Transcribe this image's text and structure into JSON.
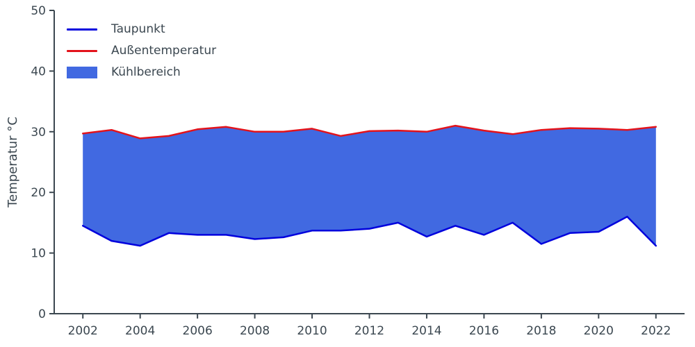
{
  "chart_data": {
    "type": "area",
    "title": "",
    "xlabel": "",
    "ylabel": "Temperatur °C",
    "x": [
      2002,
      2003,
      2004,
      2005,
      2006,
      2007,
      2008,
      2009,
      2010,
      2011,
      2012,
      2013,
      2014,
      2015,
      2016,
      2017,
      2018,
      2019,
      2020,
      2021,
      2022
    ],
    "xlim": [
      2001,
      2023
    ],
    "ylim": [
      0,
      50
    ],
    "xticks": [
      2002,
      2004,
      2006,
      2008,
      2010,
      2012,
      2014,
      2016,
      2018,
      2020,
      2022
    ],
    "yticks": [
      0,
      10,
      20,
      30,
      40,
      50
    ],
    "grid": false,
    "legend_position": "upper-left",
    "axis_color": "#3b4750",
    "series": [
      {
        "name": "Taupunkt",
        "color": "#0000dd",
        "values": [
          14.5,
          12.0,
          11.2,
          13.3,
          13.0,
          13.0,
          12.3,
          12.6,
          13.7,
          13.7,
          14.0,
          15.0,
          12.7,
          14.5,
          13.0,
          15.0,
          11.5,
          13.3,
          13.5,
          16.0,
          11.2
        ]
      },
      {
        "name": "Außentemperatur",
        "color": "#e3131b",
        "values": [
          29.7,
          30.3,
          28.9,
          29.3,
          30.4,
          30.8,
          30.0,
          30.0,
          30.5,
          29.3,
          30.1,
          30.2,
          30.0,
          31.0,
          30.2,
          29.6,
          30.3,
          30.6,
          30.5,
          30.3,
          30.8
        ]
      }
    ],
    "fill": {
      "name": "Kühlbereich",
      "color": "#4169e1",
      "between": [
        "Taupunkt",
        "Außentemperatur"
      ]
    }
  }
}
